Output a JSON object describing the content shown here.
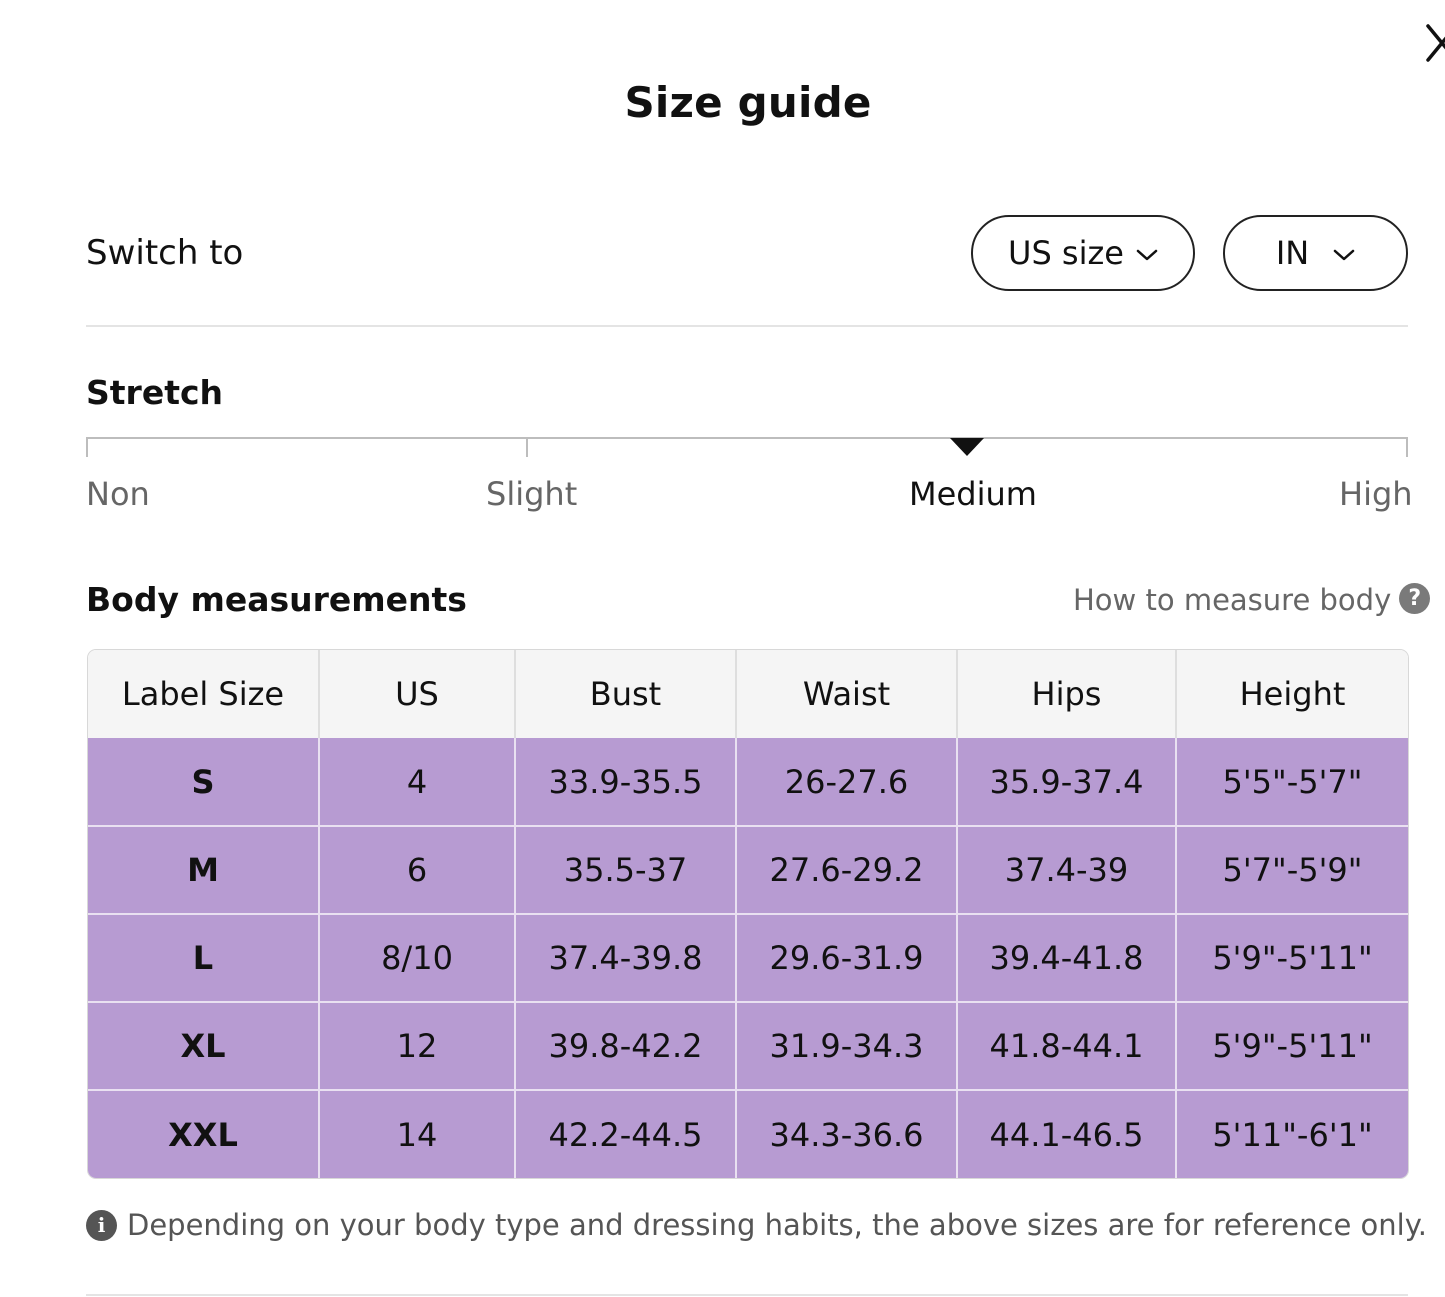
{
  "modal": {
    "title": "Size guide",
    "close_icon": "close-icon"
  },
  "switch": {
    "label": "Switch to",
    "size_system": {
      "value": "US size",
      "icon": "chevron-down-icon"
    },
    "unit": {
      "value": "IN",
      "icon": "chevron-down-icon"
    }
  },
  "stretch": {
    "title": "Stretch",
    "levels": [
      "Non",
      "Slight",
      "Medium",
      "High"
    ],
    "selected": "Medium",
    "pointer_icon": "triangle-down-icon"
  },
  "body_measurements": {
    "title": "Body measurements",
    "how_to_link": "How to measure body",
    "how_to_icon": "question-circle-icon",
    "columns": [
      "Label Size",
      "US",
      "Bust",
      "Waist",
      "Hips",
      "Height"
    ],
    "rows": [
      [
        "S",
        "4",
        "33.9-35.5",
        "26-27.6",
        "35.9-37.4",
        "5'5\"-5'7\""
      ],
      [
        "M",
        "6",
        "35.5-37",
        "27.6-29.2",
        "37.4-39",
        "5'7\"-5'9\""
      ],
      [
        "L",
        "8/10",
        "37.4-39.8",
        "29.6-31.9",
        "39.4-41.8",
        "5'9\"-5'11\""
      ],
      [
        "XL",
        "12",
        "39.8-42.2",
        "31.9-34.3",
        "41.8-44.1",
        "5'9\"-5'11\""
      ],
      [
        "XXL",
        "14",
        "42.2-44.5",
        "34.3-36.6",
        "44.1-46.5",
        "5'11\"-6'1\""
      ]
    ],
    "row_color": "#b79bd2",
    "header_color": "#f5f5f5"
  },
  "footnote": {
    "icon": "info-icon",
    "text": "Depending on your body type and dressing habits, the above sizes are for reference only."
  }
}
